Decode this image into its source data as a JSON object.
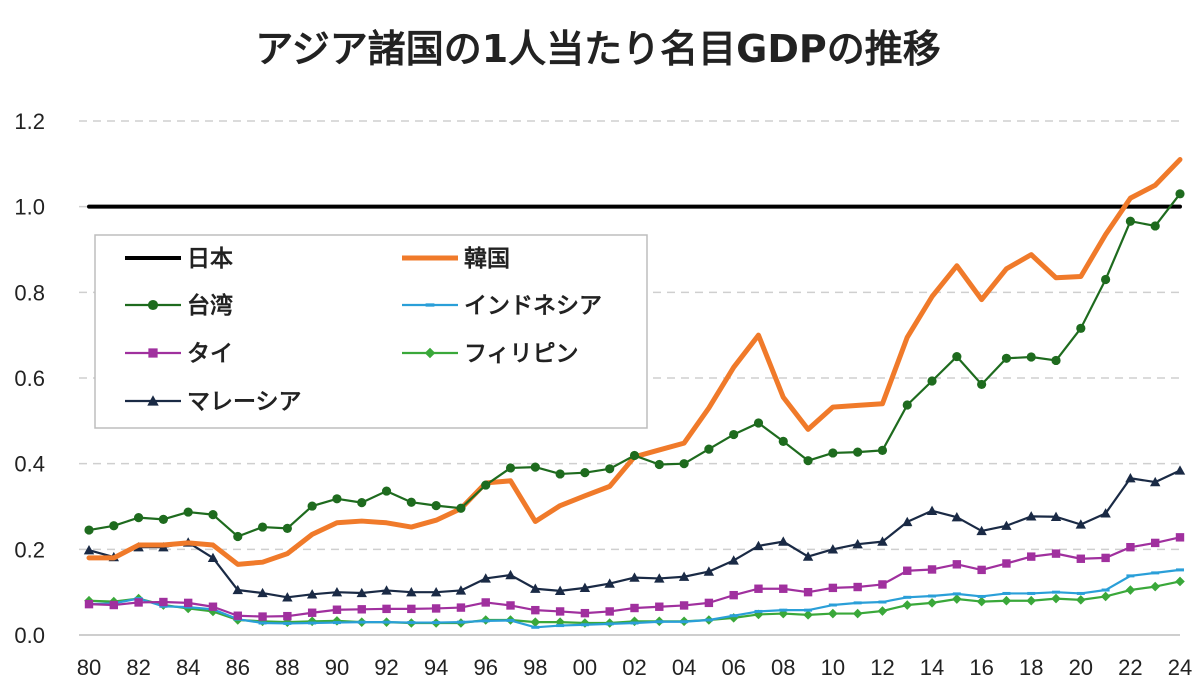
{
  "chart_data": {
    "type": "line",
    "title": "アジア諸国の1人当たり名目GDPの推移",
    "xlabel": "",
    "ylabel": "",
    "ylim": [
      0,
      1.2
    ],
    "yticks": [
      "0.0",
      "0.2",
      "0.4",
      "0.6",
      "0.8",
      "1.0",
      "1.2"
    ],
    "x": [
      1980,
      1981,
      1982,
      1983,
      1984,
      1985,
      1986,
      1987,
      1988,
      1989,
      1990,
      1991,
      1992,
      1993,
      1994,
      1995,
      1996,
      1997,
      1998,
      1999,
      2000,
      2001,
      2002,
      2003,
      2004,
      2005,
      2006,
      2007,
      2008,
      2009,
      2010,
      2011,
      2012,
      2013,
      2014,
      2015,
      2016,
      2017,
      2018,
      2019,
      2020,
      2021,
      2022,
      2023,
      2024
    ],
    "xticks": [
      "80",
      "82",
      "84",
      "86",
      "88",
      "90",
      "92",
      "94",
      "96",
      "98",
      "00",
      "02",
      "04",
      "06",
      "08",
      "10",
      "12",
      "14",
      "16",
      "18",
      "20",
      "22",
      "24"
    ],
    "grid": "horizontal dashed",
    "legend_position": "upper-left",
    "series": [
      {
        "name": "日本",
        "color": "#000000",
        "marker": "none",
        "values": [
          1,
          1,
          1,
          1,
          1,
          1,
          1,
          1,
          1,
          1,
          1,
          1,
          1,
          1,
          1,
          1,
          1,
          1,
          1,
          1,
          1,
          1,
          1,
          1,
          1,
          1,
          1,
          1,
          1,
          1,
          1,
          1,
          1,
          1,
          1,
          1,
          1,
          1,
          1,
          1,
          1,
          1,
          1,
          1,
          1
        ]
      },
      {
        "name": "韓国",
        "color": "#f07a2a",
        "marker": "none",
        "values": [
          0.18,
          0.18,
          0.21,
          0.21,
          0.215,
          0.21,
          0.165,
          0.17,
          0.19,
          0.235,
          0.262,
          0.266,
          0.262,
          0.252,
          0.268,
          0.295,
          0.355,
          0.36,
          0.265,
          0.302,
          0.325,
          0.347,
          0.416,
          0.432,
          0.448,
          0.53,
          0.625,
          0.7,
          0.555,
          0.48,
          0.532,
          0.536,
          0.54,
          0.695,
          0.79,
          0.862,
          0.783,
          0.855,
          0.888,
          0.834,
          0.837,
          0.935,
          1.02,
          1.05,
          1.11
        ]
      },
      {
        "name": "台湾",
        "color": "#1e6b1e",
        "marker": "circle",
        "values": [
          0.245,
          0.255,
          0.274,
          0.27,
          0.287,
          0.281,
          0.23,
          0.252,
          0.249,
          0.301,
          0.318,
          0.309,
          0.336,
          0.31,
          0.302,
          0.296,
          0.35,
          0.39,
          0.392,
          0.376,
          0.379,
          0.388,
          0.419,
          0.398,
          0.4,
          0.434,
          0.468,
          0.495,
          0.452,
          0.407,
          0.425,
          0.427,
          0.431,
          0.537,
          0.593,
          0.65,
          0.585,
          0.646,
          0.649,
          0.641,
          0.716,
          0.83,
          0.966,
          0.955,
          1.03
        ]
      },
      {
        "name": "インドネシア",
        "color": "#2a9fd8",
        "marker": "dash",
        "values": [
          0.072,
          0.074,
          0.085,
          0.067,
          0.065,
          0.06,
          0.037,
          0.028,
          0.027,
          0.028,
          0.029,
          0.03,
          0.03,
          0.029,
          0.029,
          0.03,
          0.033,
          0.034,
          0.018,
          0.022,
          0.024,
          0.026,
          0.028,
          0.031,
          0.031,
          0.035,
          0.045,
          0.055,
          0.058,
          0.058,
          0.07,
          0.075,
          0.077,
          0.088,
          0.091,
          0.096,
          0.09,
          0.097,
          0.097,
          0.1,
          0.097,
          0.105,
          0.138,
          0.145,
          0.152
        ]
      },
      {
        "name": "タイ",
        "color": "#a0309e",
        "marker": "square",
        "values": [
          0.072,
          0.07,
          0.076,
          0.077,
          0.075,
          0.066,
          0.045,
          0.043,
          0.044,
          0.052,
          0.059,
          0.06,
          0.061,
          0.061,
          0.062,
          0.064,
          0.076,
          0.069,
          0.058,
          0.055,
          0.051,
          0.055,
          0.063,
          0.066,
          0.069,
          0.075,
          0.093,
          0.108,
          0.108,
          0.1,
          0.11,
          0.112,
          0.118,
          0.15,
          0.153,
          0.165,
          0.152,
          0.167,
          0.183,
          0.19,
          0.178,
          0.18,
          0.205,
          0.215,
          0.228
        ]
      },
      {
        "name": "フィリピン",
        "color": "#3aa83a",
        "marker": "diamond",
        "values": [
          0.08,
          0.078,
          0.085,
          0.07,
          0.062,
          0.055,
          0.035,
          0.032,
          0.03,
          0.032,
          0.033,
          0.03,
          0.03,
          0.028,
          0.028,
          0.028,
          0.035,
          0.035,
          0.03,
          0.03,
          0.028,
          0.028,
          0.032,
          0.032,
          0.032,
          0.035,
          0.04,
          0.048,
          0.05,
          0.047,
          0.05,
          0.05,
          0.056,
          0.07,
          0.075,
          0.084,
          0.078,
          0.08,
          0.08,
          0.085,
          0.082,
          0.09,
          0.105,
          0.113,
          0.125
        ]
      },
      {
        "name": "マレーシア",
        "color": "#1a2a45",
        "marker": "triangle",
        "values": [
          0.198,
          0.182,
          0.205,
          0.205,
          0.216,
          0.18,
          0.105,
          0.098,
          0.088,
          0.095,
          0.1,
          0.098,
          0.104,
          0.1,
          0.1,
          0.104,
          0.132,
          0.14,
          0.108,
          0.103,
          0.11,
          0.12,
          0.134,
          0.132,
          0.136,
          0.148,
          0.174,
          0.208,
          0.218,
          0.183,
          0.2,
          0.212,
          0.218,
          0.264,
          0.29,
          0.275,
          0.243,
          0.255,
          0.277,
          0.276,
          0.258,
          0.284,
          0.366,
          0.357,
          0.384
        ]
      }
    ]
  }
}
